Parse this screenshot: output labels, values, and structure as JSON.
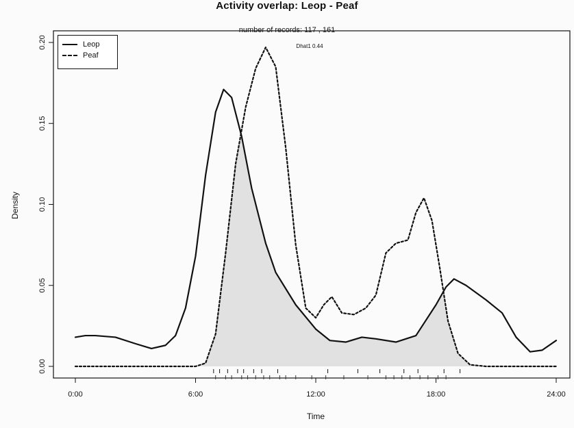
{
  "chart_data": {
    "type": "line",
    "title": "Activity overlap:  Leop - Peaf",
    "subtitle": "number of records: 117 , 161",
    "annotation": "Dhat1 0.44",
    "xlabel": "Time",
    "ylabel": "Density",
    "xlim": [
      0,
      24
    ],
    "ylim": [
      0,
      0.2
    ],
    "x_ticks": [
      "0:00",
      "6:00",
      "12:00",
      "18:00",
      "24:00"
    ],
    "y_ticks": [
      "0.00",
      "0.05",
      "0.10",
      "0.15",
      "0.20"
    ],
    "legend_position": "top-left",
    "series": [
      {
        "name": "Leop",
        "style": "solid",
        "x": [
          0,
          0.5,
          1,
          2,
          3,
          3.8,
          4.5,
          5,
          5.5,
          6,
          6.5,
          7,
          7.4,
          7.8,
          8.3,
          8.8,
          9.5,
          10,
          11,
          12,
          12.7,
          13.5,
          14.3,
          15,
          16,
          17,
          18,
          18.5,
          18.9,
          19.5,
          20.5,
          21.3,
          22,
          22.7,
          23.3,
          24
        ],
        "y": [
          0.018,
          0.019,
          0.019,
          0.018,
          0.014,
          0.011,
          0.013,
          0.019,
          0.036,
          0.068,
          0.118,
          0.157,
          0.171,
          0.166,
          0.142,
          0.11,
          0.076,
          0.058,
          0.038,
          0.023,
          0.016,
          0.015,
          0.018,
          0.017,
          0.015,
          0.019,
          0.038,
          0.049,
          0.054,
          0.05,
          0.041,
          0.033,
          0.018,
          0.009,
          0.01,
          0.016
        ]
      },
      {
        "name": "Peaf",
        "style": "dashed",
        "x": [
          0,
          5,
          6,
          6.5,
          7,
          7.5,
          8,
          8.5,
          9,
          9.5,
          10,
          10.5,
          11,
          11.5,
          12,
          12.4,
          12.8,
          13.3,
          13.9,
          14.5,
          15,
          15.5,
          16,
          16.6,
          17,
          17.4,
          17.8,
          18.2,
          18.6,
          19.1,
          19.7,
          20.5,
          24
        ],
        "y": [
          0,
          0,
          0,
          0.002,
          0.02,
          0.07,
          0.125,
          0.16,
          0.184,
          0.197,
          0.185,
          0.135,
          0.075,
          0.036,
          0.03,
          0.038,
          0.043,
          0.033,
          0.032,
          0.036,
          0.044,
          0.07,
          0.076,
          0.078,
          0.095,
          0.104,
          0.09,
          0.06,
          0.028,
          0.008,
          0.001,
          0,
          0
        ]
      }
    ]
  }
}
